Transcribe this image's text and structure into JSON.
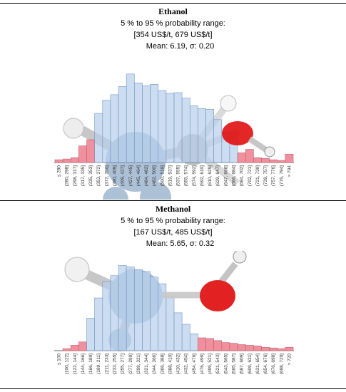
{
  "colors": {
    "bar_blue": "#b8d0ec",
    "bar_red": "#f08a98",
    "bar_edge_blue": "#7095c4",
    "bar_edge_red": "#c4606e"
  },
  "chart_data": [
    {
      "type": "bar",
      "title": "Ethanol",
      "subtitle": "5 % to 95 % probability range:",
      "range_text": "[354 US$/t, 679 US$/t]",
      "stats_text": "Mean: 6.19, σ: 0.20",
      "categories": [
        "≤ 280",
        "(280, 298]",
        "(298, 317]",
        "(317, 335]",
        "(335, 353]",
        "(353, 372]",
        "(372, 390]",
        "(390, 409]",
        "(409, 427]",
        "(427, 445]",
        "(445, 464]",
        "(464, 482]",
        "(482, 500]",
        "(500, 519]",
        "(519, 537]",
        "(537, 555]",
        "(555, 574]",
        "(574, 592]",
        "(592, 610]",
        "(610, 629]",
        "(629, 647]",
        "(647, 666]",
        "(666, 684]",
        "(684, 702]",
        "(702, 721]",
        "(721, 739]",
        "(739, 757]",
        "(757, 776]",
        "(776, 794]",
        "> 794"
      ],
      "values": [
        4,
        5,
        7,
        24,
        33,
        71,
        90,
        98,
        110,
        128,
        115,
        111,
        113,
        104,
        100,
        101,
        93,
        82,
        78,
        77,
        62,
        44,
        35,
        14,
        19,
        7,
        6,
        4,
        3,
        12
      ],
      "highlight": [
        0,
        1,
        2,
        3,
        4,
        23,
        24,
        25,
        26,
        27,
        28,
        29
      ],
      "ylim": [
        0,
        135
      ]
    },
    {
      "type": "bar",
      "title": "Methanol",
      "subtitle": "5 % to 95 % probability range:",
      "range_text": "[167 US$/t, 485 US$/t]",
      "stats_text": "Mean: 5.65, σ: 0.32",
      "categories": [
        "≤ 100",
        "(100, 122]",
        "(122, 144]",
        "(144, 166]",
        "(166, 189]",
        "(189, 211]",
        "(211, 233]",
        "(233, 255]",
        "(255, 277]",
        "(277, 299]",
        "(299, 321]",
        "(321, 344]",
        "(344, 366]",
        "(366, 388]",
        "(388, 410]",
        "(410, 432]",
        "(432, 454]",
        "(454, 476]",
        "(476, 499]",
        "(499, 521]",
        "(521, 543]",
        "(543, 565]",
        "(565, 587]",
        "(587, 609]",
        "(609, 631]",
        "(631, 654]",
        "(654, 676]",
        "(676, 698]",
        "(698, 720]",
        "> 720"
      ],
      "values": [
        0,
        3,
        8,
        13,
        48,
        78,
        102,
        111,
        126,
        124,
        120,
        117,
        109,
        99,
        80,
        56,
        39,
        25,
        19,
        18,
        15,
        12,
        11,
        9,
        8,
        7,
        5,
        4,
        3,
        5
      ],
      "highlight": [
        0,
        1,
        2,
        3,
        18,
        19,
        20,
        21,
        22,
        23,
        24,
        25,
        26,
        27,
        28,
        29
      ],
      "ylim": [
        0,
        135
      ]
    }
  ]
}
